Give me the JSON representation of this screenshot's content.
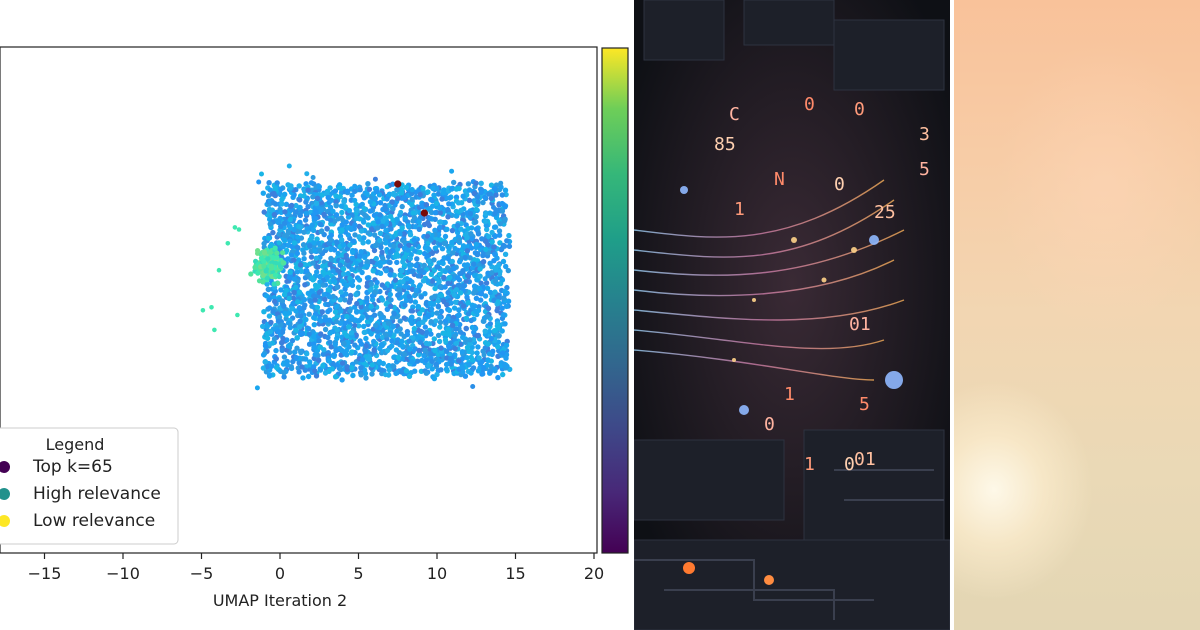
{
  "chart_data": {
    "type": "scatter",
    "title": "",
    "xlabel": "UMAP Iteration 2",
    "ylabel": "",
    "xlim": [
      -20,
      20
    ],
    "xticks": [
      -15,
      -10,
      -5,
      0,
      5,
      10,
      15,
      20
    ],
    "xtick_labels": [
      "−15",
      "−10",
      "−5",
      "0",
      "5",
      "10",
      "15",
      "20"
    ],
    "grid": false,
    "colormap": "viridis",
    "legend": {
      "title": "Legend",
      "placement": "lower-left",
      "entries": [
        {
          "label": "Top k=65",
          "color": "#440154"
        },
        {
          "label": "High relevance",
          "color": "#21918c"
        },
        {
          "label": "Low relevance",
          "color": "#fde725"
        }
      ]
    },
    "clusters": [
      {
        "name": "main",
        "x_range": [
          -1,
          14.5
        ],
        "approx_points": 3000,
        "color": "#1f9ff0"
      },
      {
        "name": "green",
        "x_range": [
          -3,
          1.5
        ],
        "approx_points": 250,
        "color": "#3ee8b0"
      }
    ],
    "highlight_points": [
      {
        "x": 7.5,
        "color": "#7a0a0a"
      },
      {
        "x": 9.2,
        "color": "#7a0a0a"
      }
    ]
  },
  "panels": {
    "art_glyphs": [
      "C",
      "0",
      "85",
      "0",
      "3",
      "5",
      "N",
      "0",
      "1",
      "25",
      "01",
      "5",
      "0",
      "1",
      "01",
      "0",
      "1"
    ]
  }
}
